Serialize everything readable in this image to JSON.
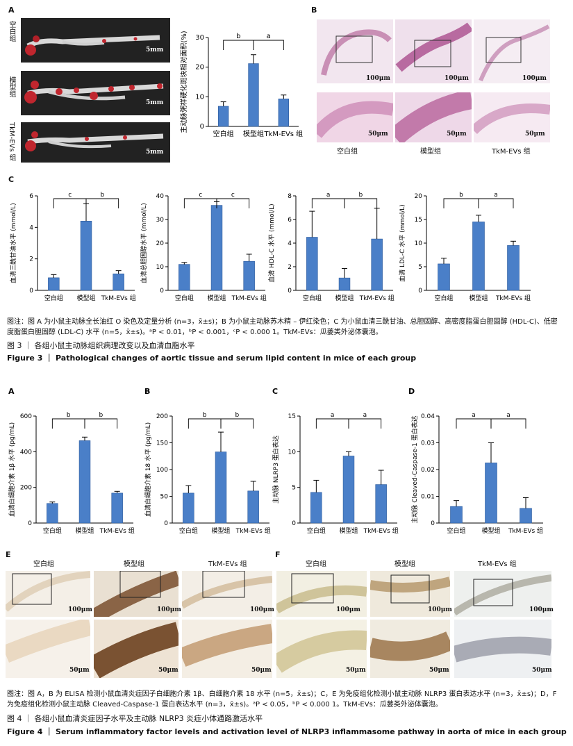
{
  "fig3": {
    "panel_a": {
      "label": "A",
      "groups": [
        "空白组",
        "模型组",
        "TkM-EVs 组"
      ],
      "scale": "5mm"
    },
    "panel_b": {
      "label": "B",
      "groups": [
        "空白组",
        "模型组",
        "TkM-EVs 组"
      ],
      "scale_low": "100μm",
      "scale_high": "50μm"
    },
    "panel_c": {
      "label": "C"
    },
    "caption": "图注：图 A 为小鼠主动脉全长油红 O 染色及定量分析 (n=3，x̄±s)；B 为小鼠主动脉苏木精 – 伊红染色；C 为小鼠血清三酰甘油、总胆固醇、高密度脂蛋白胆固醇 (HDL-C)、低密度脂蛋白胆固醇 (LDL-C) 水平 (n=5，x̄±s)。ᵃP < 0.01，ᵇP < 0.001，ᶜP < 0.000 1。TkM-EVs：瓜蒌类外泌体囊泡。",
    "title_cn": "图 3 ｜ 各组小鼠主动脉组织病理改变以及血清血脂水平",
    "title_en": "Figure 3 ｜ Pathological changes of aortic tissue and serum lipid content in mice of each group"
  },
  "fig4": {
    "panel_e": {
      "label": "E",
      "groups": [
        "空白组",
        "模型组",
        "TkM-EVs 组"
      ],
      "scale_low": "100μm",
      "scale_high": "50μm"
    },
    "panel_f": {
      "label": "F",
      "groups": [
        "空白组",
        "模型组",
        "TkM-EVs 组"
      ],
      "scale_low": "100μm",
      "scale_high": "50μm"
    },
    "caption": "图注：图 A，B 为 ELISA 检测小鼠血清炎症因子白细胞介素 1β、白细胞介素 18 水平 (n=5，x̄±s)；C，E 为免疫组化检测小鼠主动脉 NLRP3 蛋白表达水平 (n=3，x̄±s)；D，F 为免疫组化检测小鼠主动脉 Cleaved-Caspase-1 蛋白表达水平 (n=3，x̄±s)。ᵃP < 0.05，ᵇP < 0.000 1。TkM-EVs：瓜蒌类外泌体囊泡。",
    "title_cn": "图 4 ｜ 各组小鼠血清炎症因子水平及主动脉 NLRP3 炎症小体通路激活水平",
    "title_en": "Figure 4 ｜ Serum inflammatory factor levels and activation level of NLRP3 inflammasome pathway in aorta of mice in each group"
  },
  "chart_data": [
    {
      "id": "f3a",
      "type": "bar",
      "categories": [
        "空白组",
        "模型组",
        "TkM-EVs 组"
      ],
      "values": [
        6.8,
        21.2,
        9.3
      ],
      "errors": [
        1.5,
        3.0,
        1.3
      ],
      "ylabel": "主动脉粥样硬化斑块相对面积(%)",
      "ylim": [
        0,
        30
      ],
      "yticks": [
        0,
        10,
        20,
        30
      ],
      "sig": [
        {
          "a": 0,
          "b": 1,
          "t": "b"
        },
        {
          "a": 1,
          "b": 2,
          "t": "a"
        }
      ]
    },
    {
      "id": "f3c1",
      "type": "bar",
      "categories": [
        "空白组",
        "模型组",
        "TkM-EVs 组"
      ],
      "values": [
        0.8,
        4.4,
        1.05
      ],
      "errors": [
        0.2,
        1.1,
        0.2
      ],
      "ylabel": "血清三酰甘油水平 (mmol/L)",
      "ylim": [
        0,
        6
      ],
      "yticks": [
        0,
        2,
        4,
        6
      ],
      "sig": [
        {
          "a": 0,
          "b": 1,
          "t": "c"
        },
        {
          "a": 1,
          "b": 2,
          "t": "b"
        }
      ]
    },
    {
      "id": "f3c2",
      "type": "bar",
      "categories": [
        "空白组",
        "模型组",
        "TkM-EVs 组"
      ],
      "values": [
        11,
        36,
        12.3
      ],
      "errors": [
        0.8,
        1.5,
        3
      ],
      "ylabel": "血清总胆固醇水平 (mmol/L)",
      "ylim": [
        0,
        40
      ],
      "yticks": [
        0,
        10,
        20,
        30,
        40
      ],
      "sig": [
        {
          "a": 0,
          "b": 1,
          "t": "c"
        },
        {
          "a": 1,
          "b": 2,
          "t": "c"
        }
      ]
    },
    {
      "id": "f3c3",
      "type": "bar",
      "categories": [
        "空白组",
        "模型组",
        "TkM-EVs 组"
      ],
      "values": [
        4.5,
        1.05,
        4.35
      ],
      "errors": [
        2.2,
        0.8,
        2.6
      ],
      "ylabel": "血清 HDL-C 水平 (mmol/L)",
      "ylim": [
        0,
        8
      ],
      "yticks": [
        0,
        2,
        4,
        6,
        8
      ],
      "sig": [
        {
          "a": 0,
          "b": 1,
          "t": "a"
        },
        {
          "a": 1,
          "b": 2,
          "t": "b"
        }
      ]
    },
    {
      "id": "f3c4",
      "type": "bar",
      "categories": [
        "空白组",
        "模型组",
        "TkM-EVs 组"
      ],
      "values": [
        5.6,
        14.5,
        9.5
      ],
      "errors": [
        1.2,
        1.4,
        0.9
      ],
      "ylabel": "血清 LDL-C 水平 (mmol/L)",
      "ylim": [
        0,
        20
      ],
      "yticks": [
        0,
        5,
        10,
        15,
        20
      ],
      "sig": [
        {
          "a": 0,
          "b": 1,
          "t": "b"
        },
        {
          "a": 1,
          "b": 2,
          "t": "a"
        }
      ]
    },
    {
      "id": "f4a",
      "type": "bar",
      "label": "A",
      "categories": [
        "空白组",
        "模型组",
        "TkM-EVs 组"
      ],
      "values": [
        110,
        462,
        168
      ],
      "errors": [
        8,
        20,
        10
      ],
      "ylabel": "血清白细胞介素 1β 水平 (pg/mL)",
      "ylim": [
        0,
        600
      ],
      "yticks": [
        0,
        200,
        400,
        600
      ],
      "sig": [
        {
          "a": 0,
          "b": 1,
          "t": "b"
        },
        {
          "a": 1,
          "b": 2,
          "t": "b"
        }
      ]
    },
    {
      "id": "f4b",
      "type": "bar",
      "label": "B",
      "categories": [
        "空白组",
        "模型组",
        "TkM-EVs 组"
      ],
      "values": [
        56,
        133,
        60
      ],
      "errors": [
        14,
        37,
        18
      ],
      "ylabel": "血清白细胞介素 18 水平 (pg/mL)",
      "ylim": [
        0,
        200
      ],
      "yticks": [
        0,
        50,
        100,
        150,
        200
      ],
      "sig": [
        {
          "a": 0,
          "b": 1,
          "t": "b"
        },
        {
          "a": 1,
          "b": 2,
          "t": "b"
        }
      ]
    },
    {
      "id": "f4c",
      "type": "bar",
      "label": "C",
      "categories": [
        "空白组",
        "模型组",
        "TkM-EVs 组"
      ],
      "values": [
        4.3,
        9.4,
        5.4
      ],
      "errors": [
        1.7,
        0.6,
        2.0
      ],
      "ylabel": "主动脉 NLRP3 蛋白表达",
      "ylim": [
        0,
        15
      ],
      "yticks": [
        0,
        5,
        10,
        15
      ],
      "sig": [
        {
          "a": 0,
          "b": 1,
          "t": "a"
        },
        {
          "a": 1,
          "b": 2,
          "t": "a"
        }
      ]
    },
    {
      "id": "f4d",
      "type": "bar",
      "label": "D",
      "categories": [
        "空白组",
        "模型组",
        "TkM-EVs 组"
      ],
      "values": [
        0.0062,
        0.0225,
        0.0055
      ],
      "errors": [
        0.0022,
        0.0075,
        0.004
      ],
      "ylabel": "主动脉 Cleaved-Caspase-1 蛋白表达",
      "ylim": [
        0,
        0.04
      ],
      "yticks": [
        0,
        0.01,
        0.02,
        0.03,
        0.04
      ],
      "sig": [
        {
          "a": 0,
          "b": 1,
          "t": "a"
        },
        {
          "a": 1,
          "b": 2,
          "t": "a"
        }
      ]
    }
  ]
}
